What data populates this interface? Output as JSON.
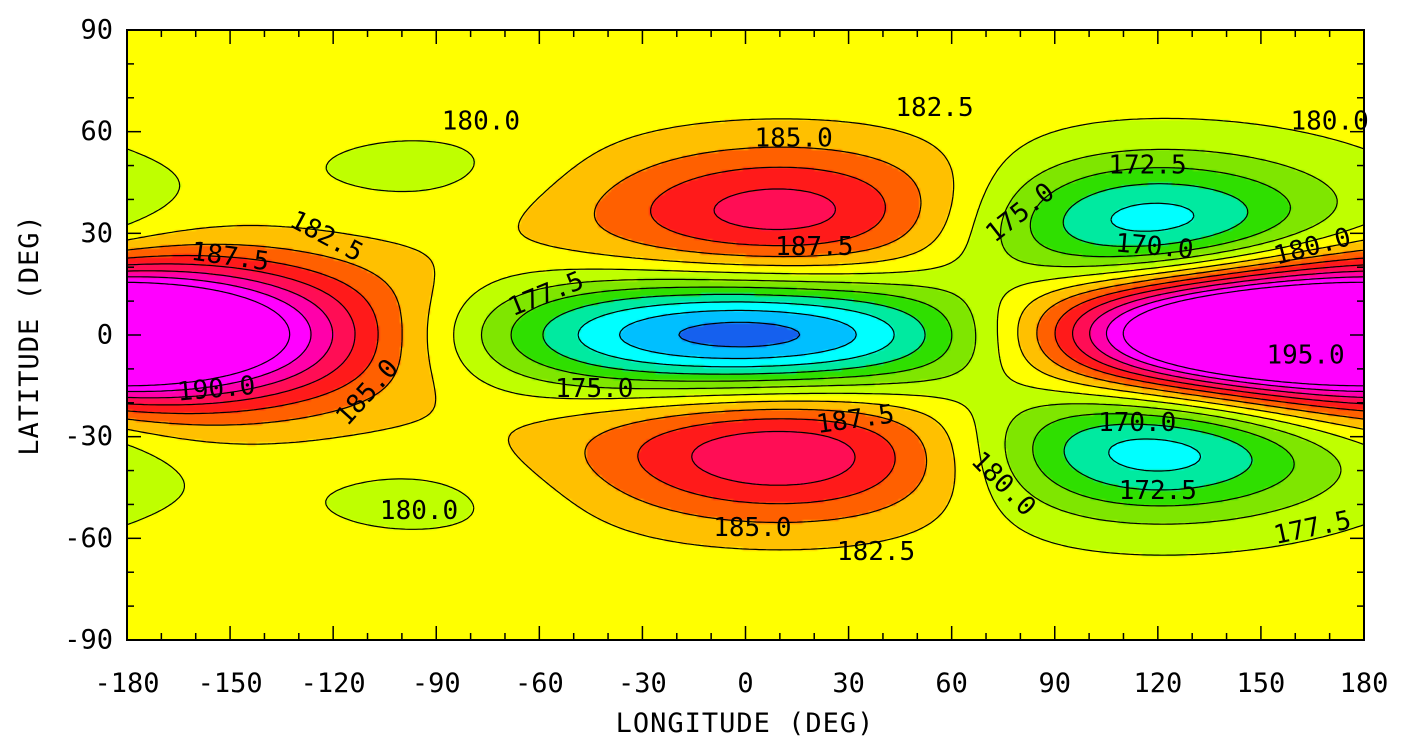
{
  "chart_data": {
    "type": "heatmap",
    "plot_kind": "filled contour map",
    "title": "",
    "xlabel": "LONGITUDE (DEG)",
    "ylabel": "LATITUDE (DEG)",
    "xlim": [
      -180,
      180
    ],
    "ylim": [
      -90,
      90
    ],
    "x_ticks": [
      -180,
      -150,
      -120,
      -90,
      -60,
      -30,
      0,
      30,
      60,
      90,
      120,
      150,
      180
    ],
    "y_ticks": [
      -90,
      -60,
      -30,
      0,
      30,
      60,
      90
    ],
    "x_tick_labels": [
      "-180",
      "-150",
      "-120",
      "-90",
      "-60",
      "-30",
      "0",
      "30",
      "60",
      "90",
      "120",
      "150",
      "180"
    ],
    "y_tick_labels": [
      "-90",
      "-60",
      "-30",
      "0",
      "30",
      "60",
      "90"
    ],
    "contour_levels": [
      165.0,
      167.5,
      170.0,
      172.5,
      175.0,
      177.5,
      180.0,
      182.5,
      185.0,
      187.5,
      190.0,
      192.5,
      195.0,
      197.5
    ],
    "colormap": {
      "levels": [
        162.5,
        165.0,
        167.5,
        170.0,
        172.5,
        175.0,
        177.5,
        180.0,
        182.5,
        185.0,
        187.5,
        190.0,
        192.5,
        195.0
      ],
      "colors": [
        "#0000cc",
        "#1560ee",
        "#00bfff",
        "#00ffff",
        "#00eaa0",
        "#2fdf00",
        "#7fe600",
        "#bfff00",
        "#ffff00",
        "#ffc000",
        "#ff6000",
        "#ff1a1a",
        "#ff0d55",
        "#ff00aa",
        "#ff00ff"
      ]
    },
    "background_value": 181.0,
    "features": [
      {
        "kind": "max",
        "lon": -180,
        "lat": 0,
        "amp": 11.5,
        "lon_radius": 75,
        "lat_radius": 22
      },
      {
        "kind": "max",
        "lon": 180,
        "lat": 0,
        "amp": 11.5,
        "lon_radius": 75,
        "lat_radius": 22
      },
      {
        "kind": "min",
        "lon": 0,
        "lat": 0,
        "amp": 18.0,
        "lon_radius": 80,
        "lat_radius": 17
      },
      {
        "kind": "max",
        "lon": 12,
        "lat": 36,
        "amp": 10.5,
        "lon_radius": 60,
        "lat_radius": 20
      },
      {
        "kind": "max",
        "lon": 12,
        "lat": -35,
        "amp": 11.5,
        "lon_radius": 60,
        "lat_radius": 20
      },
      {
        "kind": "min",
        "lon": 118,
        "lat": 32,
        "amp": 13.5,
        "lon_radius": 55,
        "lat_radius": 20
      },
      {
        "kind": "min",
        "lon": 118,
        "lat": -33,
        "amp": 13.5,
        "lon_radius": 55,
        "lat_radius": 20
      },
      {
        "kind": "max",
        "lon": 142,
        "lat": 1,
        "amp": 15.0,
        "lon_radius": 62,
        "lat_radius": 16
      },
      {
        "kind": "min",
        "lon": -90,
        "lat": 48,
        "amp": 1.8,
        "lon_radius": 45,
        "lat_radius": 14
      },
      {
        "kind": "min",
        "lon": -90,
        "lat": -48,
        "amp": 1.8,
        "lon_radius": 45,
        "lat_radius": 14
      }
    ],
    "contour_labels": [
      {
        "text": "180.0",
        "lon": -77,
        "lat": 63,
        "rot": 0
      },
      {
        "text": "182.5",
        "lon": -122,
        "lat": 29,
        "rot": 28
      },
      {
        "text": "187.5",
        "lon": -150,
        "lat": 23,
        "rot": 8
      },
      {
        "text": "190.0",
        "lon": -154,
        "lat": -16,
        "rot": -5
      },
      {
        "text": "185.0",
        "lon": -110,
        "lat": -17,
        "rot": -48
      },
      {
        "text": "177.5",
        "lon": -58,
        "lat": 12,
        "rot": -22
      },
      {
        "text": "175.0",
        "lon": -44,
        "lat": -16,
        "rot": 0
      },
      {
        "text": "180.0",
        "lon": -95,
        "lat": -52,
        "rot": 0
      },
      {
        "text": "185.0",
        "lon": 14,
        "lat": 58,
        "rot": 0
      },
      {
        "text": "182.5",
        "lon": 55,
        "lat": 67,
        "rot": 0
      },
      {
        "text": "187.5",
        "lon": 20,
        "lat": 26,
        "rot": 0
      },
      {
        "text": "187.5",
        "lon": 32,
        "lat": -25,
        "rot": -8
      },
      {
        "text": "185.0",
        "lon": 2,
        "lat": -57,
        "rot": 0
      },
      {
        "text": "182.5",
        "lon": 38,
        "lat": -64,
        "rot": 0
      },
      {
        "text": "175.0",
        "lon": 80,
        "lat": 36,
        "rot": -38
      },
      {
        "text": "172.5",
        "lon": 117,
        "lat": 50,
        "rot": 0
      },
      {
        "text": "170.0",
        "lon": 119,
        "lat": 26,
        "rot": 5
      },
      {
        "text": "180.0",
        "lon": 170,
        "lat": 63,
        "rot": 0
      },
      {
        "text": "180.0",
        "lon": 165,
        "lat": 26,
        "rot": -15
      },
      {
        "text": "195.0",
        "lon": 163,
        "lat": -6,
        "rot": 0
      },
      {
        "text": "170.0",
        "lon": 114,
        "lat": -26,
        "rot": 0
      },
      {
        "text": "180.0",
        "lon": 75,
        "lat": -44,
        "rot": 45
      },
      {
        "text": "172.5",
        "lon": 120,
        "lat": -46,
        "rot": 0
      },
      {
        "text": "177.5",
        "lon": 165,
        "lat": -57,
        "rot": -12
      }
    ]
  }
}
